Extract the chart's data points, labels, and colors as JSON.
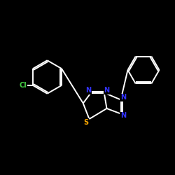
{
  "background_color": "#000000",
  "bond_color": "#ffffff",
  "atom_colors": {
    "N": "#3333ff",
    "S": "#ffaa00",
    "Cl": "#44cc44",
    "C": "#ffffff"
  },
  "figsize": [
    2.5,
    2.5
  ],
  "dpi": 100
}
